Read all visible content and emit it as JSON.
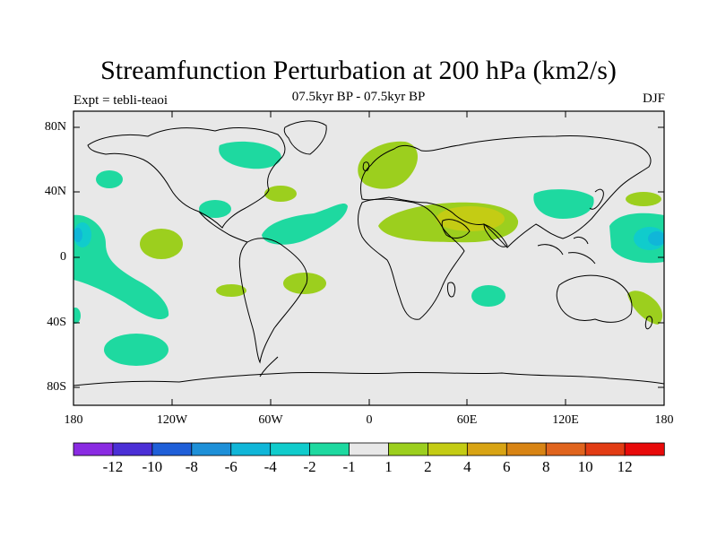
{
  "title": "Streamfunction Perturbation at 200 hPa (km2/s)",
  "subtitle_left": "Expt = tebli-teaoi",
  "subtitle_center": "07.5kyr BP - 07.5kyr BP",
  "subtitle_right": "DJF",
  "y_axis": [
    "80N",
    "40N",
    "0",
    "40S",
    "80S"
  ],
  "x_axis": [
    "180",
    "120W",
    "60W",
    "0",
    "60E",
    "120E",
    "180"
  ],
  "colorbar": {
    "colors": [
      "#8a2be2",
      "#4b2fd6",
      "#1f5fd8",
      "#1e90d8",
      "#10b6d8",
      "#10cccc",
      "#1ed9a0",
      "#e8e8e8",
      "#9ccf1e",
      "#c4cc14",
      "#d8a414",
      "#d88414",
      "#e0641e",
      "#e23c14",
      "#e80a0a"
    ],
    "labels": [
      "-12",
      "-10",
      "-8",
      "-6",
      "-4",
      "-2",
      "-1",
      "1",
      "2",
      "4",
      "6",
      "8",
      "10",
      "12"
    ]
  },
  "colors": {
    "ocean_land_background": "#e8e8e8",
    "neg_contour": "#1ed9a0",
    "neg_deep": "#10cccc",
    "pos_contour": "#9ccf1e",
    "pos_strong": "#c4cc14"
  }
}
